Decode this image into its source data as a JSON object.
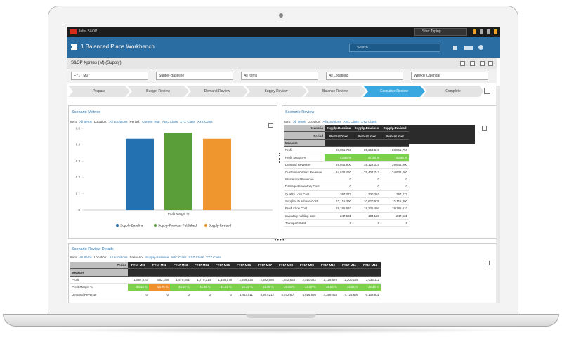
{
  "top_bar": {
    "brand": "Infor S&OP",
    "search": "Start Typing"
  },
  "header": {
    "title": "1 Balanced Plans Workbench",
    "search": "Search"
  },
  "workbench": {
    "title": "S&OP Xpress (M) (Supply)",
    "filters": [
      "FY17 M07",
      "Supply-Baseline",
      "All Items",
      "All Locations",
      "Weekly Calendar"
    ]
  },
  "process_steps": {
    "steps": [
      "Prepare",
      "Budget Review",
      "Demand Review",
      "Supply Review",
      "Balance Review",
      "Executive Review",
      "Complete"
    ],
    "active": 5
  },
  "chart_data": {
    "type": "bar",
    "title": "Scenario Metrics",
    "filters": [
      {
        "text": "Item:"
      },
      {
        "text": "All Items",
        "link": true
      },
      {
        "text": "Location:"
      },
      {
        "text": "All Locations",
        "link": true
      },
      {
        "text": "Period:"
      },
      {
        "text": "Current Year",
        "link": true
      },
      {
        "text": "ABC Class",
        "link": true
      },
      {
        "text": "XYZ Class",
        "link": true
      },
      {
        "text": "XYZ Class",
        "link": true
      }
    ],
    "categories": [
      "Profit Margin %"
    ],
    "series": [
      {
        "name": "Supply-Baseline",
        "color": "#2371b0",
        "values": [
          0.4365
        ]
      },
      {
        "name": "Supply-Previous Published",
        "color": "#5a9e3a",
        "values": [
          0.4728
        ]
      },
      {
        "name": "Supply-Revised",
        "color": "#ef962f",
        "values": [
          0.4365
        ]
      }
    ],
    "ylim": [
      0,
      0.5
    ],
    "yticks": [
      0,
      0.1,
      0.2,
      0.3,
      0.4,
      0.5
    ],
    "grid": false,
    "legend": "bottom"
  },
  "scenario_review": {
    "title": "Scenario Review",
    "filters": [
      {
        "text": "Item:"
      },
      {
        "text": "All Items",
        "link": true
      },
      {
        "text": "Location:"
      },
      {
        "text": "All Locations",
        "link": true
      },
      {
        "text": "ABC Class",
        "link": true
      },
      {
        "text": "XYZ Class",
        "link": true
      }
    ],
    "corner": [
      "Scenario",
      "Period",
      "Measure"
    ],
    "columns": [
      {
        "scenario": "Supply-Baseline",
        "period": "Current Year"
      },
      {
        "scenario": "Supply-Previous",
        "period": "Current Year"
      },
      {
        "scenario": "Supply-Revised",
        "period": "Current Year"
      }
    ],
    "rows": [
      {
        "measure": "Profit",
        "cells": [
          "23,951,756",
          "25,253,519",
          "23,951,756"
        ]
      },
      {
        "measure": "Profit Margin %",
        "cells": [
          "43.65 %",
          "47.28 %",
          "43.65 %"
        ],
        "colors": [
          "#7bd24a",
          "#7bd24a",
          "#7bd24a"
        ]
      },
      {
        "measure": "Demand Revenue",
        "cells": [
          "29,945,900",
          "35,122,037",
          "29,945,900"
        ]
      },
      {
        "measure": "Customer Orders Revenue",
        "cells": [
          "24,632,460",
          "29,407,742",
          "24,632,460"
        ]
      },
      {
        "measure": "Waste Lost Revenue",
        "cells": [
          "0",
          "0",
          "0"
        ]
      },
      {
        "measure": "Damaged Inventory Cost",
        "cells": [
          "0",
          "0",
          "0"
        ]
      },
      {
        "measure": "Quality Loss Cost",
        "cells": [
          "367,272",
          "330,362",
          "367,272"
        ]
      },
      {
        "measure": "Supplier Purchase Cost",
        "cells": [
          "11,116,390",
          "10,620,935",
          "11,116,390"
        ]
      },
      {
        "measure": "Production Cost",
        "cells": [
          "19,185,610",
          "18,235,404",
          "19,185,610"
        ]
      },
      {
        "measure": "Inventory holding cost",
        "cells": [
          "247,531",
          "104,128",
          "247,531"
        ]
      },
      {
        "measure": "Transport Cost",
        "cells": [
          "0",
          "0",
          "0"
        ]
      }
    ]
  },
  "scenario_review_details": {
    "title": "Scenario Review Details",
    "filters": [
      {
        "text": "Item:"
      },
      {
        "text": "All Items",
        "link": true
      },
      {
        "text": "Location:"
      },
      {
        "text": "All Locations",
        "link": true
      },
      {
        "text": "Scenario:"
      },
      {
        "text": "Supply-Baseline",
        "link": true
      },
      {
        "text": "ABC Class",
        "link": true
      },
      {
        "text": "XYZ Class",
        "link": true
      },
      {
        "text": "XYZ Class",
        "link": true
      }
    ],
    "corner": [
      "Period",
      "Measure"
    ],
    "columns": [
      "FY17 M01",
      "FY17 M02",
      "FY17 M03",
      "FY17 M04",
      "FY17 M05",
      "FY17 M06",
      "FY17 M07",
      "FY17 M08",
      "FY17 M09",
      "FY17 M10",
      "FY17 M11",
      "FY17 M12"
    ],
    "rows": [
      {
        "measure": "Profit",
        "cells": [
          "1,597,810",
          "562,158",
          "1,578,091",
          "1,779,314",
          "1,155,178",
          "2,356,536",
          "2,392,588",
          "1,842,563",
          "2,510,042",
          "2,128,578",
          "2,200,165",
          "3,033,112"
        ]
      },
      {
        "measure": "Profit Margin %",
        "cells": [
          "39.13 %",
          "14.75 %",
          "43.13 %",
          "46.45 %",
          "31.61 %",
          "52.42 %",
          "51.35 %",
          "43.68 %",
          "44.67 %",
          "48.26 %",
          "46.55 %",
          "49.42 %"
        ],
        "colors": [
          "#7bd24a",
          "#f0902c",
          "#7bd24a",
          "#7bd24a",
          "#7bd24a",
          "#7bd24a",
          "#7bd24a",
          "#7bd24a",
          "#7bd24a",
          "#7bd24a",
          "#7bd24a",
          "#7bd24a"
        ]
      },
      {
        "measure": "Demand Revenue",
        "cells": [
          "0",
          "0",
          "0",
          "0",
          "0",
          "4,483,511",
          "4,597,212",
          "5,572,607",
          "4,616,595",
          "4,398,453",
          "4,725,866",
          "6,138,831"
        ]
      }
    ]
  }
}
